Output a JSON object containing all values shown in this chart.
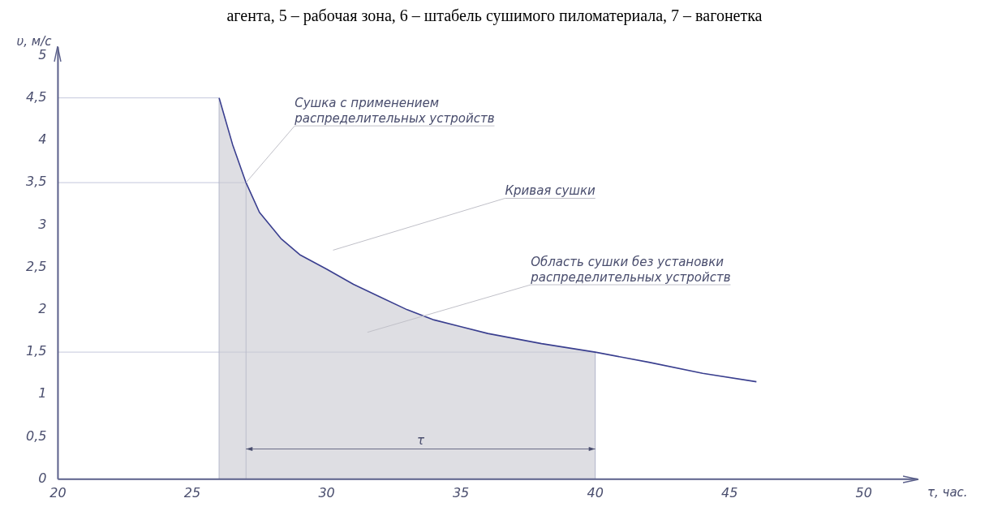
{
  "chart_data": {
    "type": "line",
    "xlabel": "τ, час.",
    "ylabel": "υ, м/с",
    "x": [
      26,
      26.5,
      27,
      27.5,
      28.3,
      29,
      30,
      31,
      32,
      33,
      34,
      35,
      36,
      38,
      40,
      42,
      44,
      46
    ],
    "series": [
      {
        "type": "area",
        "color": "#c8c8d0",
        "x": [
          26,
          26.5,
          27,
          27.5,
          28.3,
          29,
          30,
          31,
          32,
          33,
          34,
          35,
          36,
          38,
          40
        ],
        "values": [
          4.5,
          3.95,
          3.5,
          3.15,
          2.84,
          2.65,
          2.48,
          2.3,
          2.15,
          2.0,
          1.88,
          1.8,
          1.72,
          1.6,
          1.5
        ]
      },
      {
        "type": "line",
        "color": "#3a3f8f",
        "values": [
          4.5,
          3.95,
          3.5,
          3.15,
          2.84,
          2.65,
          2.48,
          2.3,
          2.15,
          2.0,
          1.88,
          1.8,
          1.72,
          1.6,
          1.5,
          1.38,
          1.25,
          1.15
        ]
      }
    ],
    "xlim": [
      20,
      52
    ],
    "xticks": [
      20,
      25,
      30,
      35,
      40,
      45,
      50
    ],
    "ylim": [
      0,
      5.1
    ],
    "yticks": [
      0,
      {
        "value": 0.5,
        "label": "0,5"
      },
      1,
      {
        "value": 1.5,
        "label": "1,5"
      },
      2,
      {
        "value": 2.5,
        "label": "2,5"
      },
      3,
      {
        "value": 3.5,
        "label": "3,5"
      },
      4,
      {
        "value": 4.5,
        "label": "4,5"
      },
      5
    ],
    "ref_lines": [
      {
        "axis": "y",
        "value": 4.5,
        "color": "#c4c8dc"
      },
      {
        "axis": "y",
        "value": 3.5,
        "color": "#c4c8dc"
      },
      {
        "axis": "y",
        "value": 1.5,
        "color": "#c4c8dc"
      },
      {
        "axis": "x",
        "value": 26,
        "color": "#a8acc4"
      },
      {
        "axis": "x",
        "value": 27,
        "color": "#a8acc4"
      },
      {
        "axis": "x",
        "value": 40,
        "color": "#a8acc4"
      }
    ],
    "annotations": [
      "агента, 5 – рабочая зона, 6 – штабель сушимого пиломатериала, 7 – вагонетка",
      {
        "text": "Сушка с применением\nраспределительных устройств",
        "x": 27,
        "y": 3.5
      },
      "Кривая сушки",
      "Область сушки без установки\nраспределительных устройств",
      "τ"
    ],
    "grid": false,
    "legend": false,
    "marker": "none",
    "line_style": "solid"
  }
}
